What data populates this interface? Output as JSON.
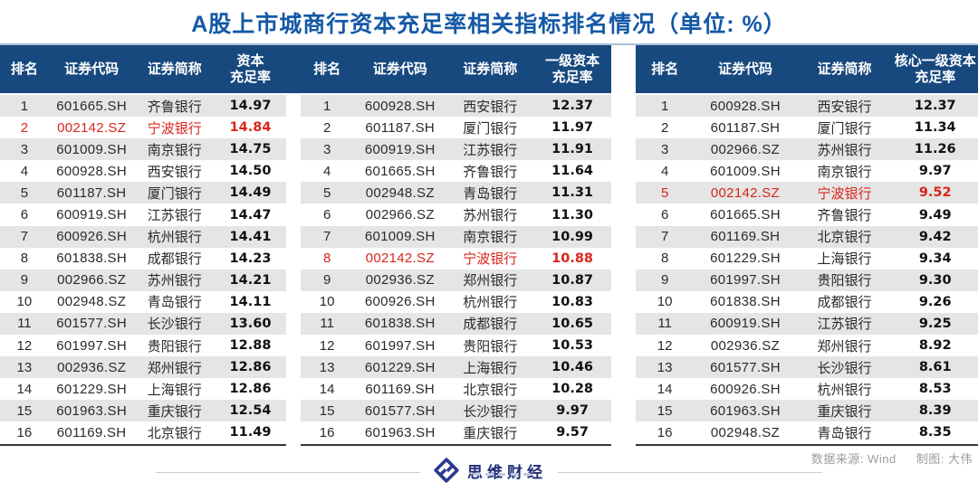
{
  "title": "A股上市城商行资本充足率相关指标排名情况（单位: %）",
  "chart_data": [
    {
      "type": "table",
      "metric_name": "资本充足率",
      "columns": [
        "排名",
        "证券代码",
        "证券简称",
        "资本充足率"
      ],
      "metric_top": "资本",
      "metric_bottom": "充足率",
      "highlight_row_index": 1,
      "highlight_color": "#d9261c",
      "rows": [
        [
          "1",
          "601665.SH",
          "齐鲁银行",
          "14.97"
        ],
        [
          "2",
          "002142.SZ",
          "宁波银行",
          "14.84"
        ],
        [
          "3",
          "601009.SH",
          "南京银行",
          "14.75"
        ],
        [
          "4",
          "600928.SH",
          "西安银行",
          "14.50"
        ],
        [
          "5",
          "601187.SH",
          "厦门银行",
          "14.49"
        ],
        [
          "6",
          "600919.SH",
          "江苏银行",
          "14.47"
        ],
        [
          "7",
          "600926.SH",
          "杭州银行",
          "14.41"
        ],
        [
          "8",
          "601838.SH",
          "成都银行",
          "14.23"
        ],
        [
          "9",
          "002966.SZ",
          "苏州银行",
          "14.21"
        ],
        [
          "10",
          "002948.SZ",
          "青岛银行",
          "14.11"
        ],
        [
          "11",
          "601577.SH",
          "长沙银行",
          "13.60"
        ],
        [
          "12",
          "601997.SH",
          "贵阳银行",
          "12.88"
        ],
        [
          "13",
          "002936.SZ",
          "郑州银行",
          "12.86"
        ],
        [
          "14",
          "601229.SH",
          "上海银行",
          "12.86"
        ],
        [
          "15",
          "601963.SH",
          "重庆银行",
          "12.54"
        ],
        [
          "16",
          "601169.SH",
          "北京银行",
          "11.49"
        ]
      ]
    },
    {
      "type": "table",
      "metric_name": "一级资本充足率",
      "columns": [
        "排名",
        "证券代码",
        "证券简称",
        "一级资本充足率"
      ],
      "metric_top": "一级资本",
      "metric_bottom": "充足率",
      "highlight_row_index": 7,
      "highlight_color": "#d9261c",
      "rows": [
        [
          "1",
          "600928.SH",
          "西安银行",
          "12.37"
        ],
        [
          "2",
          "601187.SH",
          "厦门银行",
          "11.97"
        ],
        [
          "3",
          "600919.SH",
          "江苏银行",
          "11.91"
        ],
        [
          "4",
          "601665.SH",
          "齐鲁银行",
          "11.64"
        ],
        [
          "5",
          "002948.SZ",
          "青岛银行",
          "11.31"
        ],
        [
          "6",
          "002966.SZ",
          "苏州银行",
          "11.30"
        ],
        [
          "7",
          "601009.SH",
          "南京银行",
          "10.99"
        ],
        [
          "8",
          "002142.SZ",
          "宁波银行",
          "10.88"
        ],
        [
          "9",
          "002936.SZ",
          "郑州银行",
          "10.87"
        ],
        [
          "10",
          "600926.SH",
          "杭州银行",
          "10.83"
        ],
        [
          "11",
          "601838.SH",
          "成都银行",
          "10.65"
        ],
        [
          "12",
          "601997.SH",
          "贵阳银行",
          "10.53"
        ],
        [
          "13",
          "601229.SH",
          "上海银行",
          "10.46"
        ],
        [
          "14",
          "601169.SH",
          "北京银行",
          "10.28"
        ],
        [
          "15",
          "601577.SH",
          "长沙银行",
          "9.97"
        ],
        [
          "16",
          "601963.SH",
          "重庆银行",
          "9.57"
        ]
      ]
    },
    {
      "type": "table",
      "metric_name": "核心一级资本充足率",
      "columns": [
        "排名",
        "证券代码",
        "证券简称",
        "核心一级资本充足率"
      ],
      "metric_top": "核心一级资本",
      "metric_bottom": "充足率",
      "highlight_row_index": 4,
      "highlight_color": "#d9261c",
      "rows": [
        [
          "1",
          "600928.SH",
          "西安银行",
          "12.37"
        ],
        [
          "2",
          "601187.SH",
          "厦门银行",
          "11.34"
        ],
        [
          "3",
          "002966.SZ",
          "苏州银行",
          "11.26"
        ],
        [
          "4",
          "601009.SH",
          "南京银行",
          "9.97"
        ],
        [
          "5",
          "002142.SZ",
          "宁波银行",
          "9.52"
        ],
        [
          "6",
          "601665.SH",
          "齐鲁银行",
          "9.49"
        ],
        [
          "7",
          "601169.SH",
          "北京银行",
          "9.42"
        ],
        [
          "8",
          "601229.SH",
          "上海银行",
          "9.34"
        ],
        [
          "9",
          "601997.SH",
          "贵阳银行",
          "9.30"
        ],
        [
          "10",
          "601838.SH",
          "成都银行",
          "9.26"
        ],
        [
          "11",
          "600919.SH",
          "江苏银行",
          "9.25"
        ],
        [
          "12",
          "002936.SZ",
          "郑州银行",
          "8.92"
        ],
        [
          "13",
          "601577.SH",
          "长沙银行",
          "8.61"
        ],
        [
          "14",
          "600926.SH",
          "杭州银行",
          "8.53"
        ],
        [
          "15",
          "601963.SH",
          "重庆银行",
          "8.39"
        ],
        [
          "16",
          "002948.SZ",
          "青岛银行",
          "8.35"
        ]
      ]
    }
  ],
  "footer": {
    "source_label": "数据来源: Wind",
    "credit_label": "制图: 大伟"
  },
  "logo": {
    "text": "思维财经"
  },
  "colors": {
    "title_blue": "#1459a6",
    "header_navy": "#17497f",
    "stripe_gray": "#e5e5e5",
    "highlight_red": "#d9261c",
    "footer_gray": "#9b9b9b",
    "logo_navy": "#1f2d78"
  }
}
